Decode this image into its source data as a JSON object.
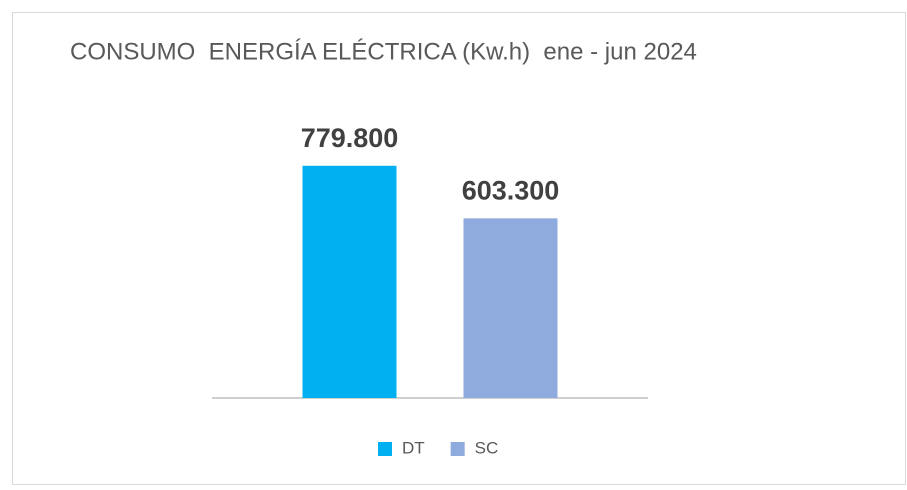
{
  "chart_data": {
    "type": "bar",
    "title": "CONSUMO  ENERGÍA ELÉCTRICA (Kw.h)  ene - jun 2024",
    "categories": [
      null
    ],
    "series": [
      {
        "name": "DT",
        "color": "#00b0f0",
        "values": [
          779800
        ],
        "value_labels": [
          "779.800"
        ]
      },
      {
        "name": "SC",
        "color": "#8faadc",
        "values": [
          603300
        ],
        "value_labels": [
          "603.300"
        ]
      }
    ],
    "ylim": [
      0,
      900000
    ],
    "legend": "bottom"
  }
}
